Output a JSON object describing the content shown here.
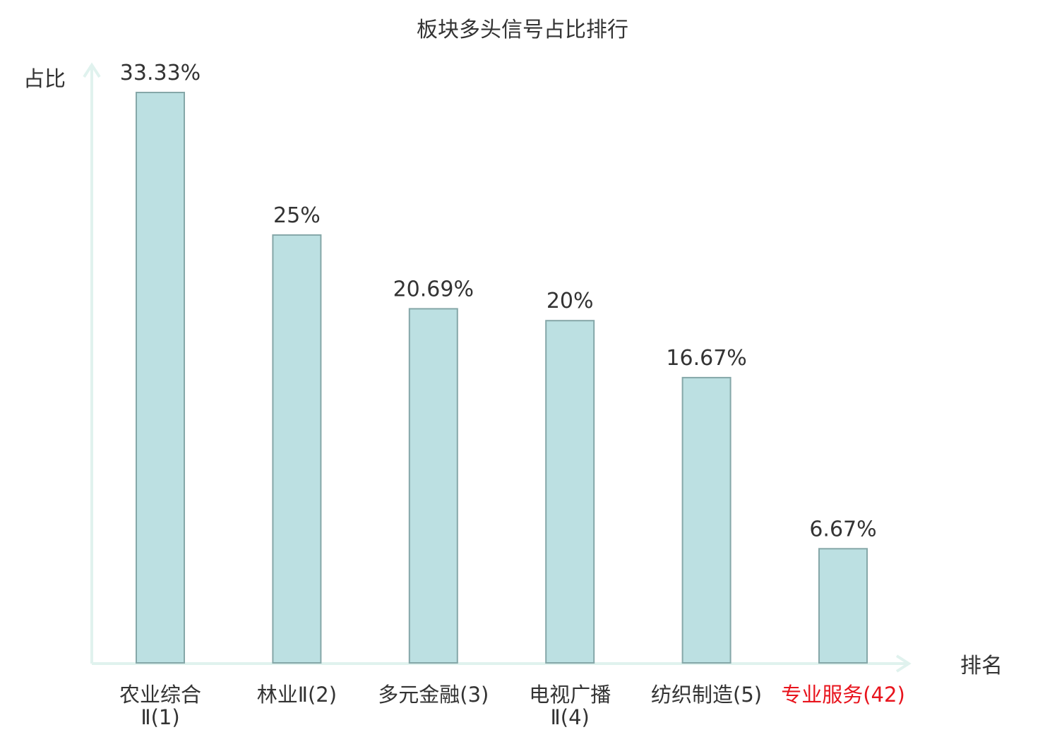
{
  "chart_data": {
    "type": "bar",
    "title": "板块多头信号占比排行",
    "ylabel": "占比",
    "xlabel": "排名",
    "ylim": [
      0,
      33.33
    ],
    "grid": false,
    "legend": "none",
    "categories": [
      {
        "lines": [
          "农业综合",
          "Ⅱ(1)"
        ],
        "highlight": false
      },
      {
        "lines": [
          "林业Ⅱ(2)"
        ],
        "highlight": false
      },
      {
        "lines": [
          "多元金融(3)"
        ],
        "highlight": false
      },
      {
        "lines": [
          "电视广播",
          "Ⅱ(4)"
        ],
        "highlight": false
      },
      {
        "lines": [
          "纺织制造(5)"
        ],
        "highlight": false
      },
      {
        "lines": [
          "专业服务(42)"
        ],
        "highlight": true
      }
    ],
    "values": [
      33.33,
      25,
      20.69,
      20,
      16.67,
      6.67
    ],
    "value_labels": [
      "33.33%",
      "25%",
      "20.69%",
      "20%",
      "16.67%",
      "6.67%"
    ],
    "colors": {
      "bar_fill": "#bce0e2",
      "bar_stroke": "#85a7a8",
      "axis": "#e0f2ee",
      "text": "#333333",
      "highlight": "#e8141d"
    }
  }
}
